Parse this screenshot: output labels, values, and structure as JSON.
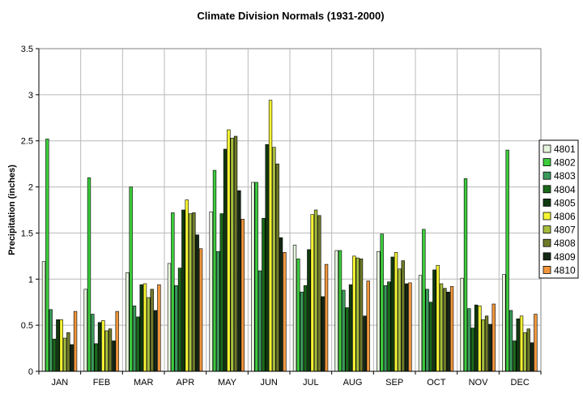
{
  "chart_data": {
    "type": "bar",
    "title": "Climate Division Normals (1931-2000)",
    "xlabel": "",
    "ylabel": "Precipitation (inches)",
    "ylim": [
      0,
      3.5
    ],
    "yticks": [
      "0",
      "0.5",
      "1",
      "1.5",
      "2",
      "2.5",
      "3",
      "3.5"
    ],
    "ytick_values": [
      0,
      0.5,
      1,
      1.5,
      2,
      2.5,
      3,
      3.5
    ],
    "grid": true,
    "legend_position": "right",
    "categories": [
      "JAN",
      "FEB",
      "MAR",
      "APR",
      "MAY",
      "JUN",
      "JUL",
      "AUG",
      "SEP",
      "OCT",
      "NOV",
      "DEC"
    ],
    "series": [
      {
        "name": "4801",
        "color": "#e6f5dc",
        "values": [
          1.19,
          0.89,
          1.07,
          1.17,
          1.73,
          2.05,
          1.37,
          1.31,
          1.3,
          1.04,
          1.01,
          1.05
        ]
      },
      {
        "name": "4802",
        "color": "#3ccc3c",
        "values": [
          2.52,
          2.1,
          2.0,
          1.72,
          2.18,
          2.05,
          1.22,
          1.31,
          1.49,
          1.54,
          2.09,
          2.4
        ]
      },
      {
        "name": "4803",
        "color": "#3a9a5a",
        "values": [
          0.67,
          0.62,
          0.71,
          0.93,
          1.3,
          1.09,
          0.86,
          0.88,
          0.93,
          0.89,
          0.68,
          0.66
        ]
      },
      {
        "name": "4804",
        "color": "#1a6a1a",
        "values": [
          0.35,
          0.3,
          0.59,
          1.12,
          1.71,
          1.66,
          0.93,
          0.69,
          0.97,
          0.75,
          0.47,
          0.33
        ]
      },
      {
        "name": "4805",
        "color": "#0f3a0f",
        "values": [
          0.56,
          0.53,
          0.94,
          1.75,
          2.41,
          2.46,
          1.32,
          0.94,
          1.24,
          1.1,
          0.72,
          0.57
        ]
      },
      {
        "name": "4806",
        "color": "#f5f532",
        "values": [
          0.56,
          0.55,
          0.95,
          1.86,
          2.62,
          2.94,
          1.7,
          1.25,
          1.29,
          1.15,
          0.71,
          0.6
        ]
      },
      {
        "name": "4807",
        "color": "#a6be3c",
        "values": [
          0.36,
          0.44,
          0.8,
          1.71,
          2.53,
          2.43,
          1.75,
          1.23,
          1.11,
          0.95,
          0.56,
          0.42
        ]
      },
      {
        "name": "4808",
        "color": "#6e7a28",
        "values": [
          0.42,
          0.46,
          0.89,
          1.72,
          2.55,
          2.25,
          1.69,
          1.22,
          1.2,
          0.9,
          0.6,
          0.46
        ]
      },
      {
        "name": "4809",
        "color": "#142814",
        "values": [
          0.29,
          0.33,
          0.66,
          1.48,
          1.96,
          1.45,
          0.81,
          0.6,
          0.95,
          0.86,
          0.51,
          0.31
        ]
      },
      {
        "name": "4810",
        "color": "#f0963c",
        "values": [
          0.65,
          0.65,
          0.94,
          1.33,
          1.65,
          1.29,
          1.16,
          0.98,
          0.96,
          0.92,
          0.73,
          0.62
        ]
      }
    ]
  }
}
